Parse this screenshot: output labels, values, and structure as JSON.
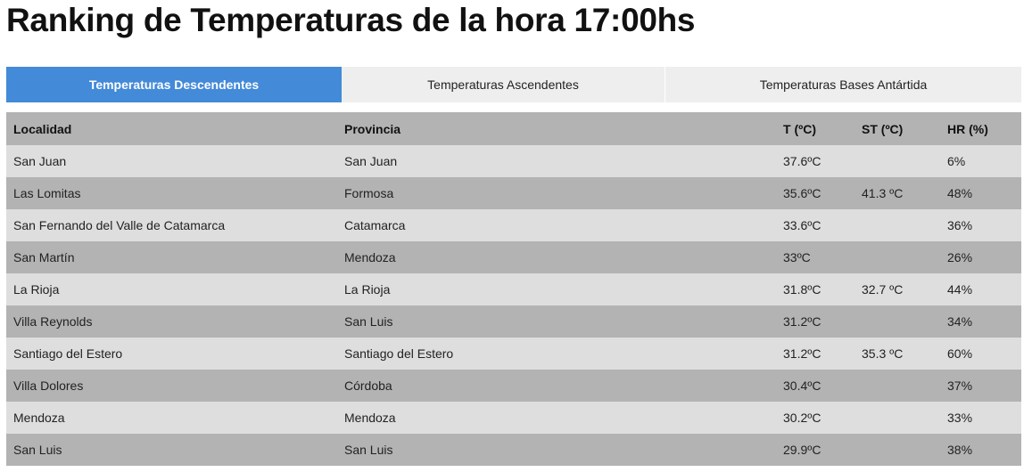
{
  "title": "Ranking de Temperaturas de la hora 17:00hs",
  "tabs": [
    {
      "label": "Temperaturas Descendentes",
      "active": true
    },
    {
      "label": "Temperaturas Ascendentes"
    },
    {
      "label": "Temperaturas Bases Antártida"
    }
  ],
  "colors": {
    "active_tab": "#438ad8",
    "header": "#b3b3b3",
    "row_light": "#dedede"
  },
  "table": {
    "headers": [
      "Localidad",
      "Provincia",
      "T (ºC)",
      "ST (ºC)",
      "HR (%)"
    ],
    "rows": [
      [
        "San Juan",
        "San Juan",
        "37.6ºC",
        "",
        "6%"
      ],
      [
        "Las Lomitas",
        "Formosa",
        "35.6ºC",
        "41.3 ºC",
        "48%"
      ],
      [
        "San Fernando del Valle de Catamarca",
        "Catamarca",
        "33.6ºC",
        "",
        "36%"
      ],
      [
        "San Martín",
        "Mendoza",
        "33ºC",
        "",
        "26%"
      ],
      [
        "La Rioja",
        "La Rioja",
        "31.8ºC",
        "32.7 ºC",
        "44%"
      ],
      [
        "Villa Reynolds",
        "San Luis",
        "31.2ºC",
        "",
        "34%"
      ],
      [
        "Santiago del Estero",
        "Santiago del Estero",
        "31.2ºC",
        "35.3 ºC",
        "60%"
      ],
      [
        "Villa Dolores",
        "Córdoba",
        "30.4ºC",
        "",
        "37%"
      ],
      [
        "Mendoza",
        "Mendoza",
        "30.2ºC",
        "",
        "33%"
      ],
      [
        "San Luis",
        "San Luis",
        "29.9ºC",
        "",
        "38%"
      ]
    ]
  }
}
